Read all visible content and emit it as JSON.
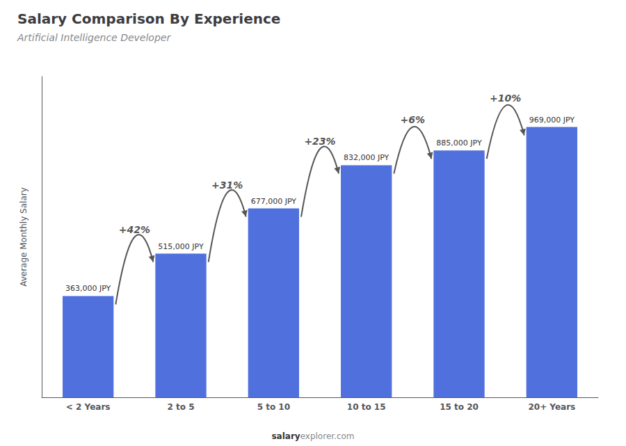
{
  "chart_data": {
    "type": "bar",
    "title": "Salary Comparison By Experience",
    "subtitle": "Artificial Intelligence Developer",
    "ylabel": "Average Monthly Salary",
    "categories": [
      "< 2 Years",
      "2 to 5",
      "5 to 10",
      "10 to 15",
      "15 to 20",
      "20+ Years"
    ],
    "values": [
      363000,
      515000,
      677000,
      832000,
      885000,
      969000
    ],
    "value_labels": [
      "363,000 JPY",
      "515,000 JPY",
      "677,000 JPY",
      "832,000 JPY",
      "885,000 JPY",
      "969,000 JPY"
    ],
    "data_labels": true,
    "annotations": [
      {
        "text": "+42%",
        "from": "< 2 Years",
        "to": "2 to 5"
      },
      {
        "text": "+31%",
        "from": "2 to 5",
        "to": "5 to 10"
      },
      {
        "text": "+23%",
        "from": "5 to 10",
        "to": "10 to 15"
      },
      {
        "text": "+6%",
        "from": "10 to 15",
        "to": "15 to 20"
      },
      {
        "text": "+10%",
        "from": "15 to 20",
        "to": "20+ Years"
      }
    ],
    "footer": [
      "salary",
      "explorer.com"
    ],
    "ylim": [
      0,
      1150000
    ],
    "grid": false,
    "tick_labels": "x"
  }
}
